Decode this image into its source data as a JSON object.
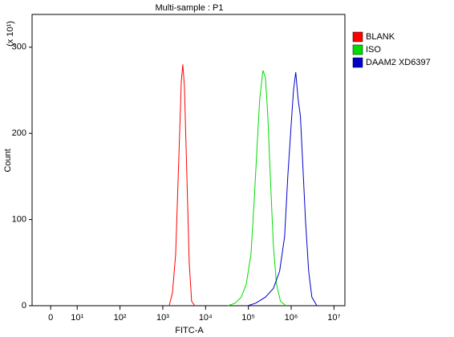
{
  "chart_data": {
    "type": "line",
    "title": "Multi-sample : P1",
    "x_label": "FITC-A",
    "y_label": "Count",
    "y_multiplier": "(x 10¹)",
    "xscale": "symlog",
    "linthresh": 10,
    "xlim": [
      -7,
      18000000
    ],
    "xticks": [
      0,
      {
        "value": 10,
        "label": "10¹"
      },
      {
        "value": 100,
        "label": "10²"
      },
      {
        "value": 1000,
        "label": "10³"
      },
      {
        "value": 10000,
        "label": "10⁴"
      },
      {
        "value": 100000,
        "label": "10⁵"
      },
      {
        "value": 1000000,
        "label": "10⁶"
      },
      {
        "value": 10000000,
        "label": "10⁷"
      }
    ],
    "ylim": [
      0,
      338
    ],
    "yticks": [
      0,
      100,
      200,
      300
    ],
    "legend": "right",
    "series": [
      {
        "name": "BLANK",
        "color": "#ff0000",
        "x": [
          1410,
          1680,
          2000,
          2370,
          2700,
          2940,
          3200,
          3650,
          4140,
          4720,
          5600
        ],
        "values": [
          0,
          15,
          60,
          170,
          260,
          280,
          255,
          150,
          50,
          5,
          0
        ]
      },
      {
        "name": "ISO",
        "color": "#00dd00",
        "x": [
          33000,
          49000,
          68000,
          89000,
          115000,
          136000,
          162000,
          184000,
          219000,
          250000,
          285000,
          326000,
          384000,
          454000,
          563000,
          760000
        ],
        "values": [
          0,
          3,
          10,
          25,
          60,
          120,
          190,
          240,
          273,
          265,
          220,
          150,
          70,
          25,
          5,
          0
        ]
      },
      {
        "name": "DAAM2 XD6397",
        "color": "#0000cc",
        "x": [
          97000,
          148000,
          250000,
          384000,
          537000,
          700000,
          834000,
          1000000,
          1130000,
          1280000,
          1450000,
          1640000,
          1880000,
          2150000,
          2560000,
          3040000,
          3980000
        ],
        "values": [
          0,
          3,
          10,
          20,
          40,
          80,
          150,
          210,
          250,
          271,
          240,
          220,
          160,
          100,
          40,
          10,
          0
        ]
      }
    ]
  }
}
